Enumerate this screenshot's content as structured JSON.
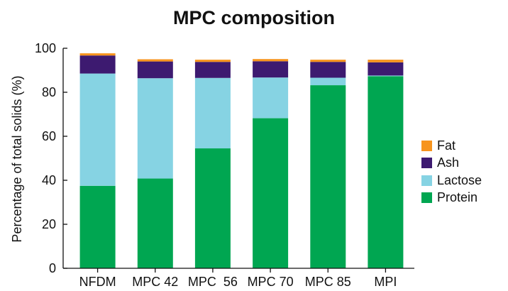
{
  "chart_data": {
    "type": "bar",
    "stacked": true,
    "title": "MPC composition",
    "xlabel": "",
    "ylabel": "Percentage of total solids (%)",
    "ylim": [
      0,
      100
    ],
    "yticks": [
      0,
      20,
      40,
      60,
      80,
      100
    ],
    "categories": [
      "NFDM",
      "MPC 42",
      "MPC  56",
      "MPC 70",
      "MPC 85",
      "MPI"
    ],
    "series": [
      {
        "name": "Protein",
        "color": "#00a651",
        "values": [
          37.5,
          40.8,
          54.5,
          68.2,
          83.2,
          87.3
        ]
      },
      {
        "name": "Lactose",
        "color": "#86d3e3",
        "values": [
          51.0,
          45.6,
          32.0,
          18.5,
          3.4,
          0.3
        ]
      },
      {
        "name": "Ash",
        "color": "#3d1a70",
        "values": [
          8.2,
          7.6,
          7.3,
          7.4,
          7.2,
          6.0
        ]
      },
      {
        "name": "Fat",
        "color": "#f7941d",
        "values": [
          1.0,
          1.0,
          1.0,
          1.0,
          1.0,
          1.2
        ]
      }
    ],
    "legend_position": "right",
    "legend_order": [
      "Fat",
      "Ash",
      "Lactose",
      "Protein"
    ],
    "grid": false
  }
}
